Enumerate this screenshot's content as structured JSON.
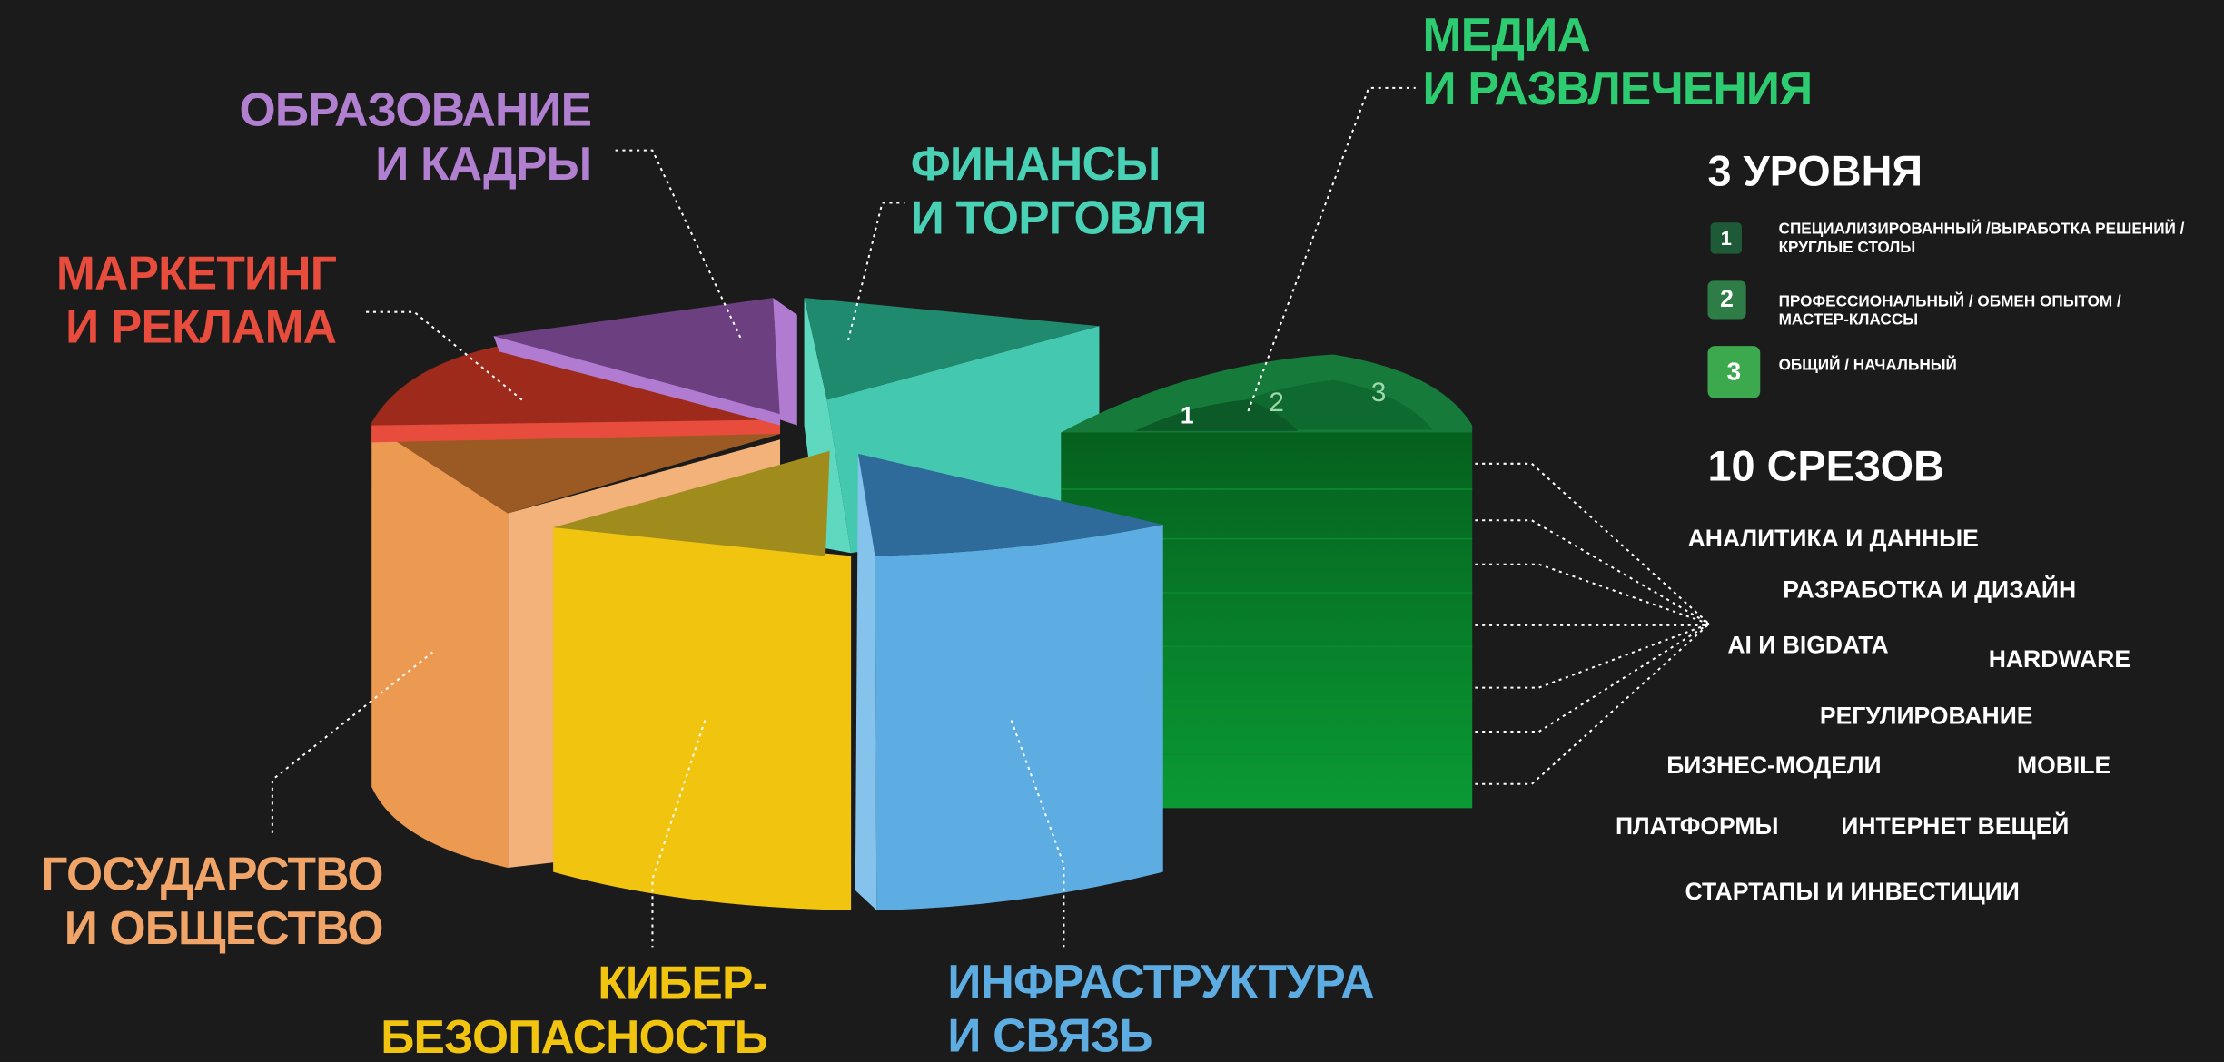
{
  "sectors": [
    {
      "lines": [
        "МЕДИА",
        "И РАЗВЛЕЧЕНИЯ"
      ]
    },
    {
      "lines": [
        "ОБРАЗОВАНИЕ",
        "И КАДРЫ"
      ]
    },
    {
      "lines": [
        "ФИНАНСЫ",
        "И ТОРГОВЛЯ"
      ]
    },
    {
      "lines": [
        "МАРКЕТИНГ",
        "И РЕКЛАМА"
      ]
    },
    {
      "lines": [
        "ГОСУДАРСТВО",
        "И ОБЩЕСТВО"
      ]
    },
    {
      "lines": [
        "КИБЕР-",
        "БЕЗОПАСНОСТЬ"
      ]
    },
    {
      "lines": [
        "ИНФРАСТРУКТУРА",
        "И СВЯЗЬ"
      ]
    }
  ],
  "levels": {
    "title": "3 УРОВНЯ",
    "items": [
      {
        "number": 1,
        "lines": [
          "СПЕЦИАЛИЗИРОВАННЫЙ /ВЫРАБОТКА РЕШЕНИЙ /",
          "КРУГЛЫЕ СТОЛЫ"
        ]
      },
      {
        "number": 2,
        "lines": [
          "ПРОФЕССИОНАЛЬНЫЙ / ОБМЕН ОПЫТОМ /",
          "МАСТЕР-КЛАССЫ"
        ]
      },
      {
        "number": 3,
        "lines": [
          "ОБЩИЙ / НАЧАЛЬНЫЙ"
        ]
      }
    ]
  },
  "slices": {
    "title": "10 СРЕЗОВ",
    "items": [
      "АНАЛИТИКА И ДАННЫЕ",
      "РАЗРАБОТКА И ДИЗАЙН",
      "AI И BIGDATA",
      "HARDWARE",
      "РЕГУЛИРОВАНИЕ",
      "БИЗНЕС-МОДЕЛИ",
      "MOBILE",
      "ПЛАТФОРМЫ",
      "ИНТЕРНЕТ ВЕЩЕЙ",
      "СТАРТАПЫ И ИНВЕСТИЦИИ"
    ]
  }
}
